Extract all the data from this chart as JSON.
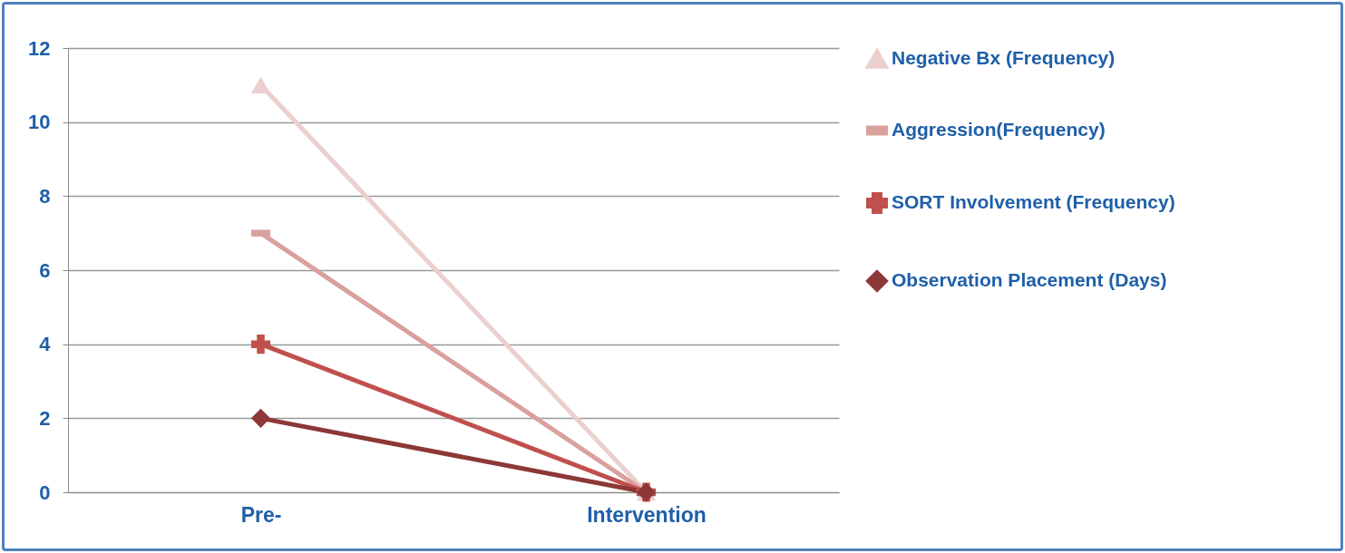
{
  "chart_data": {
    "type": "line",
    "categories": [
      "Pre-",
      "Intervention"
    ],
    "series": [
      {
        "name": "Negative Bx (Frequency)",
        "color": "#ead0cf",
        "marker": "triangle",
        "values": [
          11,
          0
        ]
      },
      {
        "name": "Aggression(Frequency)",
        "color": "#d9a09e",
        "marker": "square",
        "values": [
          7,
          0
        ]
      },
      {
        "name": "SORT Involvement (Frequency)",
        "color": "#c0504d",
        "marker": "cross",
        "values": [
          4,
          0
        ]
      },
      {
        "name": "Observation Placement (Days)",
        "color": "#8c3836",
        "marker": "diamond",
        "values": [
          2,
          0
        ]
      }
    ],
    "ylim": [
      0,
      12
    ],
    "yticks": [
      0,
      2,
      4,
      6,
      8,
      10,
      12
    ],
    "grid": "y",
    "legend": "right"
  }
}
